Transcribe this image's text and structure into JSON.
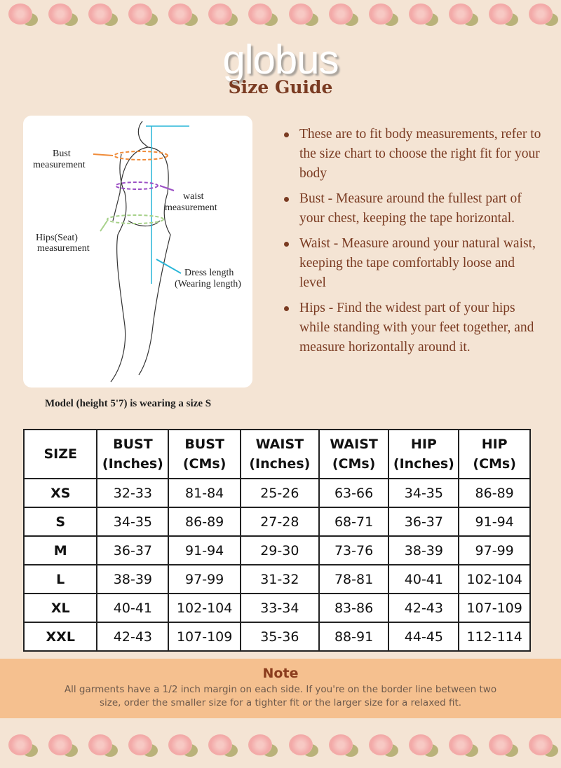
{
  "brand": {
    "logo": "globus",
    "title": "Size Guide"
  },
  "figure": {
    "labels": {
      "bust": [
        "Bust",
        "measurement"
      ],
      "waist": [
        "waist",
        "measurement"
      ],
      "hips": [
        "Hips(Seat)",
        "measurement"
      ],
      "dress": [
        "Dress length",
        "(Wearing length)"
      ]
    },
    "caption": "Model (height 5'7) is wearing a size S"
  },
  "bullets": [
    "These are to fit body measurements, refer to the size chart to choose the right fit for your body",
    "Bust - Measure around the fullest part of your chest, keeping the tape horizontal.",
    "Waist - Measure around your natural waist, keeping the tape comfortably loose and level",
    "Hips - Find the widest part of your hips while standing with your feet together, and measure horizontally around it."
  ],
  "table": {
    "headers": [
      [
        "SIZE",
        ""
      ],
      [
        "BUST",
        "(Inches)"
      ],
      [
        "BUST",
        "(CMs)"
      ],
      [
        "WAIST",
        "(Inches)"
      ],
      [
        "WAIST",
        "(CMs)"
      ],
      [
        "HIP",
        "(Inches)"
      ],
      [
        "HIP",
        "(CMs)"
      ]
    ],
    "rows": [
      [
        "XS",
        "32-33",
        "81-84",
        "25-26",
        "63-66",
        "34-35",
        "86-89"
      ],
      [
        "S",
        "34-35",
        "86-89",
        "27-28",
        "68-71",
        "36-37",
        "91-94"
      ],
      [
        "M",
        "36-37",
        "91-94",
        "29-30",
        "73-76",
        "38-39",
        "97-99"
      ],
      [
        "L",
        "38-39",
        "97-99",
        "31-32",
        "78-81",
        "40-41",
        "102-104"
      ],
      [
        "XL",
        "40-41",
        "102-104",
        "33-34",
        "83-86",
        "42-43",
        "107-109"
      ],
      [
        "XXL",
        "42-43",
        "107-109",
        "35-36",
        "88-91",
        "44-45",
        "112-114"
      ]
    ]
  },
  "note": {
    "title": "Note",
    "text": "All garments have a 1/2 inch margin on each side. If you're on the border line between two size, order the smaller size for a tighter fit or the larger size for a relaxed fit."
  }
}
